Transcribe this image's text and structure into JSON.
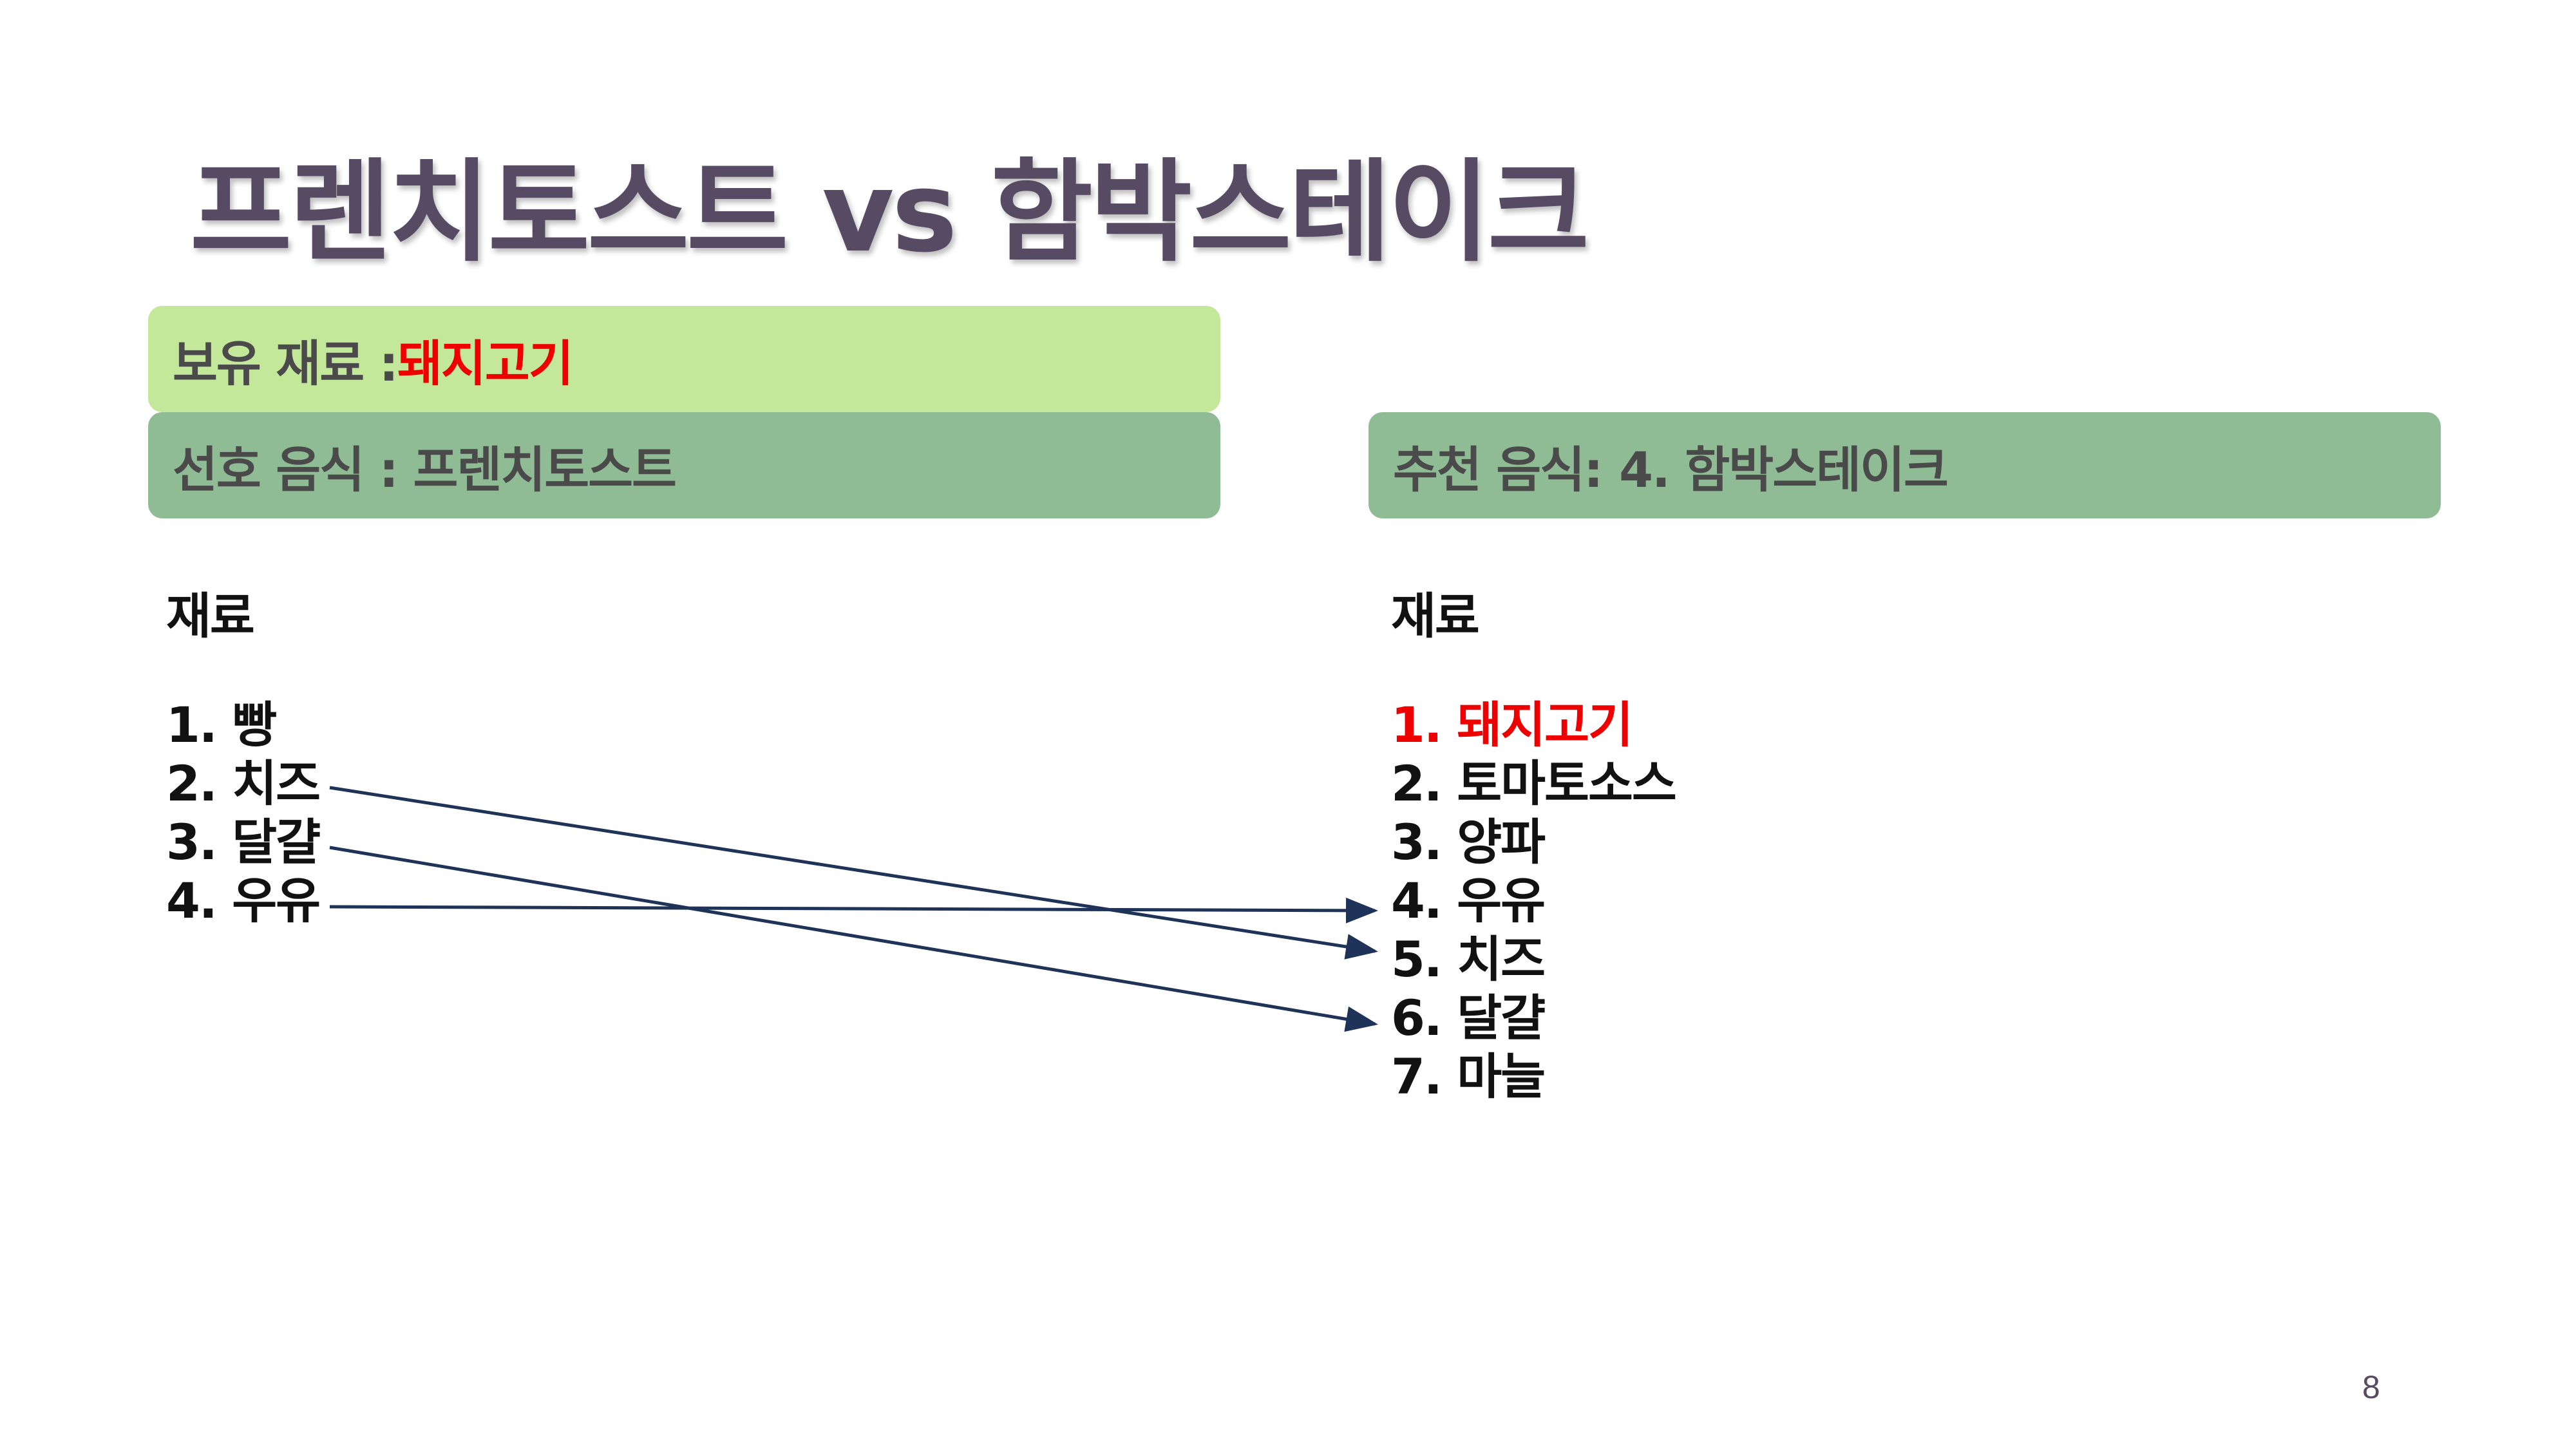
{
  "slide": {
    "title": "프렌치토스트 vs 함박스테이크",
    "page_number": "8"
  },
  "owned_box": {
    "label": "보유 재료 : ",
    "value": "돼지고기"
  },
  "preferred_box": {
    "label": "선호 음식 : 프렌치토스트"
  },
  "recommended_box": {
    "label": "추천 음식:",
    "value": "4. 함박스테이크"
  },
  "left": {
    "heading": "재료",
    "items": [
      "1. 빵",
      "2. 치즈",
      "3. 달걀",
      "4. 우유"
    ]
  },
  "right": {
    "heading": "재료",
    "items": [
      "1. 돼지고기",
      "2. 토마토소스",
      "3. 양파",
      "4. 우유",
      "5. 치즈",
      "6. 달걀",
      "7. 마늘"
    ],
    "highlighted_index": 0
  },
  "connections": [
    {
      "from": "2. 치즈",
      "to": "5. 치즈"
    },
    {
      "from": "3. 달걀",
      "to": "6. 달걀"
    },
    {
      "from": "4. 우유",
      "to": "4. 우유"
    }
  ],
  "colors": {
    "title": "#574b63",
    "owned_box": "#c3e89a",
    "preferred_box": "#8fbc94",
    "highlight": "#ee0000",
    "arrow": "#1f3358"
  }
}
